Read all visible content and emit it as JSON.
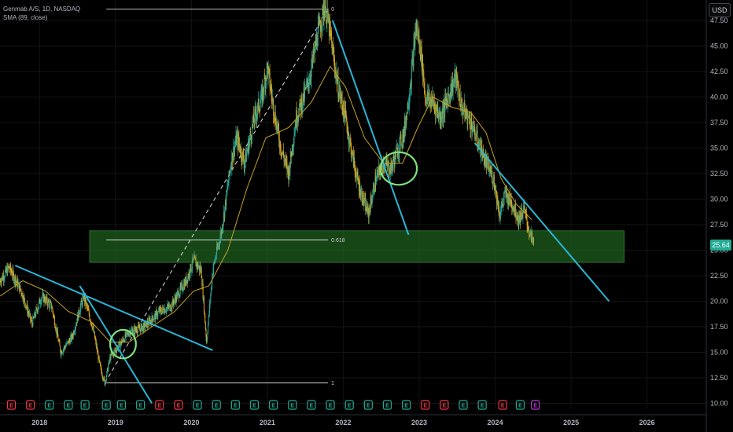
{
  "legend": {
    "title": "Genmab A/S, 1D, NASDAQ",
    "indicator": "SMA (89, close)"
  },
  "currency_button": "USD",
  "last_price": "25.64",
  "colors": {
    "background": "#000000",
    "candle_up": "#26a69a",
    "candle_down": "#d9a41d",
    "sma": "#c9a227",
    "trendline": "#29b6d8",
    "zone": "#1e5c1e",
    "circle": "#7ee07e",
    "price_tag": "#22ab94",
    "event_e": "#f23645",
    "event_d": "#22ab94",
    "event_special": "#b53fd6"
  },
  "chart_data": {
    "type": "candlestick",
    "title": "Genmab A/S, 1D, NASDAQ",
    "y_axis": {
      "ticks": [
        "47.50",
        "45.00",
        "42.50",
        "40.00",
        "37.50",
        "35.00",
        "32.50",
        "30.00",
        "27.50",
        "25.00",
        "22.50",
        "20.00",
        "17.50",
        "15.00",
        "12.50",
        "10.00"
      ],
      "range": [
        9.5,
        49.5
      ]
    },
    "x_axis": {
      "ticks": [
        "2018",
        "2019",
        "2020",
        "2021",
        "2022",
        "2023",
        "2024",
        "2025",
        "2026"
      ],
      "range": [
        2017.5,
        2026.8
      ]
    },
    "price_path": [
      [
        2017.5,
        22.0
      ],
      [
        2017.62,
        23.3
      ],
      [
        2017.78,
        21.0
      ],
      [
        2017.92,
        17.8
      ],
      [
        2018.05,
        20.5
      ],
      [
        2018.18,
        19.5
      ],
      [
        2018.3,
        15.0
      ],
      [
        2018.45,
        16.5
      ],
      [
        2018.6,
        20.5
      ],
      [
        2018.72,
        17.5
      ],
      [
        2018.82,
        13.5
      ],
      [
        2018.88,
        12.0
      ],
      [
        2018.95,
        14.5
      ],
      [
        2019.05,
        15.5
      ],
      [
        2019.2,
        17.0
      ],
      [
        2019.4,
        17.5
      ],
      [
        2019.6,
        19.0
      ],
      [
        2019.75,
        19.5
      ],
      [
        2019.95,
        22.0
      ],
      [
        2020.05,
        24.0
      ],
      [
        2020.15,
        23.0
      ],
      [
        2020.22,
        16.0
      ],
      [
        2020.3,
        23.0
      ],
      [
        2020.42,
        27.0
      ],
      [
        2020.55,
        34.0
      ],
      [
        2020.62,
        36.0
      ],
      [
        2020.72,
        33.5
      ],
      [
        2020.85,
        38.0
      ],
      [
        2020.95,
        40.0
      ],
      [
        2021.02,
        43.0
      ],
      [
        2021.1,
        39.0
      ],
      [
        2021.2,
        35.0
      ],
      [
        2021.3,
        32.5
      ],
      [
        2021.4,
        38.0
      ],
      [
        2021.5,
        40.0
      ],
      [
        2021.58,
        42.0
      ],
      [
        2021.68,
        46.0
      ],
      [
        2021.78,
        49.0
      ],
      [
        2021.85,
        46.0
      ],
      [
        2021.95,
        41.0
      ],
      [
        2022.05,
        38.0
      ],
      [
        2022.12,
        35.0
      ],
      [
        2022.2,
        32.0
      ],
      [
        2022.28,
        30.0
      ],
      [
        2022.35,
        28.5
      ],
      [
        2022.45,
        32.0
      ],
      [
        2022.55,
        33.5
      ],
      [
        2022.65,
        33.0
      ],
      [
        2022.72,
        34.5
      ],
      [
        2022.82,
        36.5
      ],
      [
        2022.9,
        41.0
      ],
      [
        2022.98,
        47.0
      ],
      [
        2023.05,
        44.0
      ],
      [
        2023.1,
        40.0
      ],
      [
        2023.2,
        39.5
      ],
      [
        2023.3,
        38.0
      ],
      [
        2023.4,
        40.0
      ],
      [
        2023.5,
        42.0
      ],
      [
        2023.58,
        39.0
      ],
      [
        2023.7,
        37.5
      ],
      [
        2023.8,
        35.5
      ],
      [
        2023.9,
        33.5
      ],
      [
        2024.0,
        32.0
      ],
      [
        2024.08,
        28.5
      ],
      [
        2024.15,
        30.5
      ],
      [
        2024.25,
        29.5
      ],
      [
        2024.33,
        28.0
      ],
      [
        2024.4,
        29.0
      ],
      [
        2024.48,
        26.5
      ],
      [
        2024.53,
        25.64
      ]
    ],
    "sma_path": [
      [
        2017.5,
        20.5
      ],
      [
        2017.8,
        22.0
      ],
      [
        2018.1,
        21.0
      ],
      [
        2018.4,
        19.0
      ],
      [
        2018.7,
        18.0
      ],
      [
        2018.95,
        16.0
      ],
      [
        2019.2,
        16.0
      ],
      [
        2019.5,
        17.5
      ],
      [
        2019.8,
        19.0
      ],
      [
        2020.05,
        21.0
      ],
      [
        2020.25,
        21.5
      ],
      [
        2020.5,
        25.0
      ],
      [
        2020.75,
        31.0
      ],
      [
        2021.0,
        36.0
      ],
      [
        2021.3,
        37.0
      ],
      [
        2021.6,
        39.5
      ],
      [
        2021.85,
        43.0
      ],
      [
        2022.05,
        41.0
      ],
      [
        2022.3,
        36.0
      ],
      [
        2022.55,
        33.5
      ],
      [
        2022.8,
        33.5
      ],
      [
        2023.0,
        37.0
      ],
      [
        2023.2,
        40.0
      ],
      [
        2023.45,
        39.0
      ],
      [
        2023.7,
        38.5
      ],
      [
        2023.9,
        36.5
      ],
      [
        2024.1,
        32.0
      ],
      [
        2024.3,
        29.5
      ],
      [
        2024.5,
        28.0
      ]
    ],
    "trendlines": [
      {
        "from": [
          2017.7,
          23.5
        ],
        "to": [
          2020.3,
          15.2
        ]
      },
      {
        "from": [
          2018.55,
          21.5
        ],
        "to": [
          2019.5,
          10.0
        ]
      },
      {
        "from": [
          2021.88,
          47.5
        ],
        "to": [
          2022.88,
          26.5
        ]
      },
      {
        "from": [
          2023.75,
          35.5
        ],
        "to": [
          2025.52,
          20.0
        ]
      }
    ],
    "fibonacci": {
      "from_date": 2018.9,
      "to_date": 2021.82,
      "levels": [
        {
          "label": "0",
          "price": 48.6
        },
        {
          "label": "0.618",
          "price": 26.0
        },
        {
          "label": "1",
          "price": 12.0
        }
      ],
      "diagonal": {
        "from": [
          2018.88,
          12.0
        ],
        "to": [
          2021.82,
          48.6
        ]
      }
    },
    "zone": {
      "from_date": 2018.68,
      "to_date": 2025.72,
      "top": 26.9,
      "bottom": 23.8
    },
    "circles": [
      {
        "center": [
          2019.12,
          15.8
        ],
        "rx": 0.17,
        "ry": 1.4
      },
      {
        "center": [
          2022.75,
          33.0
        ],
        "rx": 0.24,
        "ry": 1.6
      }
    ],
    "events": [
      {
        "date": 2017.65,
        "label": "E",
        "kind": "E"
      },
      {
        "date": 2017.9,
        "label": "E",
        "kind": "E"
      },
      {
        "date": 2018.15,
        "label": "E",
        "kind": "D"
      },
      {
        "date": 2018.4,
        "label": "E",
        "kind": "D"
      },
      {
        "date": 2018.62,
        "label": "E",
        "kind": "D"
      },
      {
        "date": 2018.9,
        "label": "E",
        "kind": "D"
      },
      {
        "date": 2019.1,
        "label": "E",
        "kind": "D"
      },
      {
        "date": 2019.35,
        "label": "E",
        "kind": "D"
      },
      {
        "date": 2019.6,
        "label": "E",
        "kind": "E"
      },
      {
        "date": 2019.85,
        "label": "E",
        "kind": "E"
      },
      {
        "date": 2020.1,
        "label": "E",
        "kind": "D"
      },
      {
        "date": 2020.35,
        "label": "E",
        "kind": "D"
      },
      {
        "date": 2020.6,
        "label": "E",
        "kind": "D"
      },
      {
        "date": 2020.85,
        "label": "E",
        "kind": "D"
      },
      {
        "date": 2021.1,
        "label": "E",
        "kind": "D"
      },
      {
        "date": 2021.35,
        "label": "E",
        "kind": "D"
      },
      {
        "date": 2021.6,
        "label": "E",
        "kind": "D"
      },
      {
        "date": 2021.85,
        "label": "E",
        "kind": "D"
      },
      {
        "date": 2022.1,
        "label": "E",
        "kind": "D"
      },
      {
        "date": 2022.35,
        "label": "E",
        "kind": "D"
      },
      {
        "date": 2022.6,
        "label": "E",
        "kind": "D"
      },
      {
        "date": 2022.85,
        "label": "E",
        "kind": "D"
      },
      {
        "date": 2023.1,
        "label": "E",
        "kind": "E"
      },
      {
        "date": 2023.35,
        "label": "E",
        "kind": "E"
      },
      {
        "date": 2023.6,
        "label": "E",
        "kind": "D"
      },
      {
        "date": 2023.85,
        "label": "E",
        "kind": "D"
      },
      {
        "date": 2024.12,
        "label": "E",
        "kind": "E"
      },
      {
        "date": 2024.35,
        "label": "E",
        "kind": "D"
      },
      {
        "date": 2024.55,
        "label": "E",
        "kind": "S"
      }
    ]
  }
}
